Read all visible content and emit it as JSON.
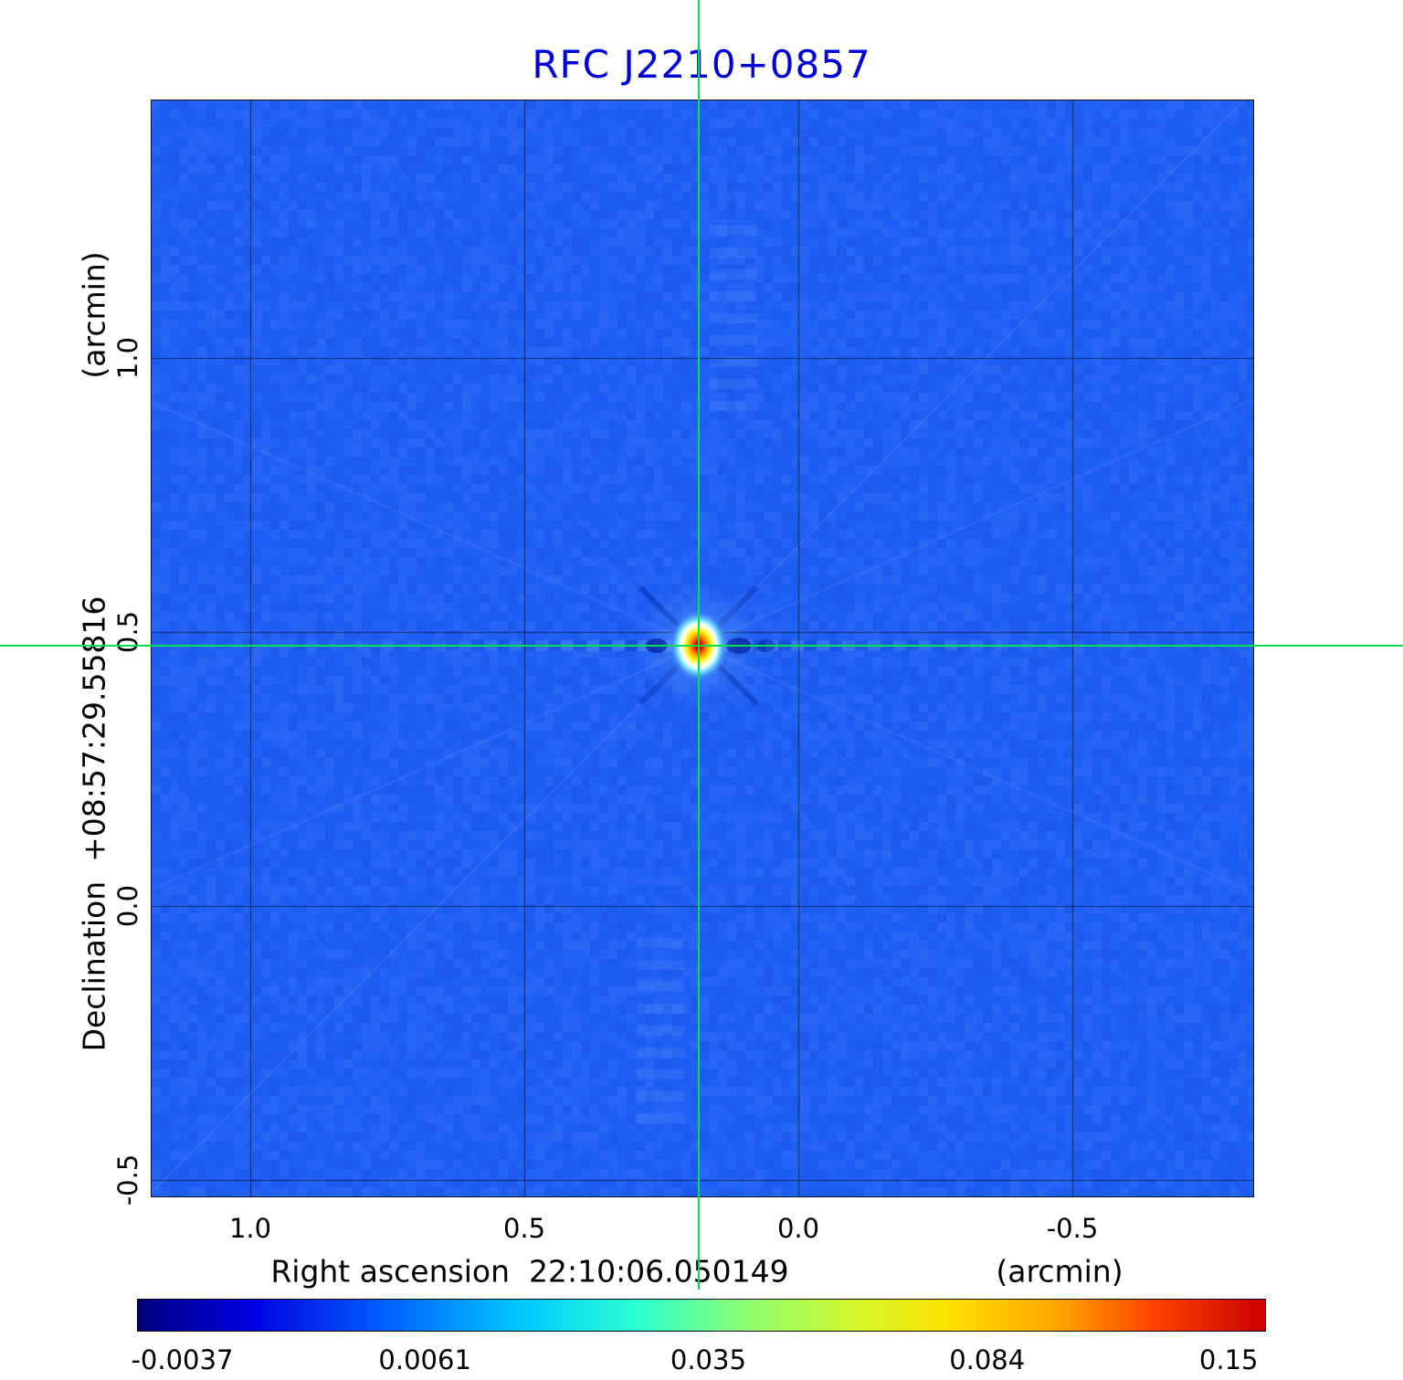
{
  "title": "RFC J2210+0857",
  "colors": {
    "title": "#0000dd",
    "crosshair": "#00e050",
    "axis_text": "#000000"
  },
  "axes": {
    "x_title_full": "Right ascension  22:10:06.050149",
    "x_unit": "(arcmin)",
    "y_title_full": "Declination  +08:57:29.55816",
    "y_unit": "(arcmin)",
    "x_ticks": [
      "1.0",
      "0.5",
      "0.0",
      "-0.5"
    ],
    "y_ticks": [
      "1.0",
      "0.5",
      "0.0",
      "-0.5"
    ]
  },
  "colorbar": {
    "ticks": [
      "-0.0037",
      "0.0061",
      "0.035",
      "0.084",
      "0.15"
    ],
    "tick_positions": [
      0.04,
      0.255,
      0.506,
      0.753,
      0.967
    ]
  },
  "chart_data": {
    "type": "heatmap",
    "title": "RFC J2210+0857",
    "xlabel": "Right ascension 22:10:06.050149 (arcmin)",
    "ylabel": "Declination +08:57:29.55816 (arcmin)",
    "x_range_arcmin": [
      1.18,
      -0.83
    ],
    "y_range_arcmin": [
      -0.53,
      1.47
    ],
    "x_ticks_arcmin": [
      1.0,
      0.5,
      0.0,
      -0.5
    ],
    "y_ticks_arcmin": [
      1.0,
      0.5,
      0.0,
      -0.5
    ],
    "grid": true,
    "source": {
      "name": "RFC J2210+0857",
      "ra": "22:10:06.050149",
      "dec": "+08:57:29.55816",
      "peak_offset_arcmin": {
        "x": 0.182,
        "y": 0.475
      },
      "peak_value": 0.15
    },
    "intensity_ticks": [
      -0.0037,
      0.0061,
      0.035,
      0.084,
      0.15
    ],
    "background_color": "#1e5ff5",
    "colormap": [
      {
        "pos": 0.0,
        "color": "#000080"
      },
      {
        "pos": 0.1,
        "color": "#0000e0"
      },
      {
        "pos": 0.22,
        "color": "#0060ff"
      },
      {
        "pos": 0.34,
        "color": "#00c8ff"
      },
      {
        "pos": 0.44,
        "color": "#2affd4"
      },
      {
        "pos": 0.54,
        "color": "#8cff6e"
      },
      {
        "pos": 0.64,
        "color": "#d8f62a"
      },
      {
        "pos": 0.72,
        "color": "#ffe100"
      },
      {
        "pos": 0.82,
        "color": "#ffa000"
      },
      {
        "pos": 0.9,
        "color": "#ff4400"
      },
      {
        "pos": 1.0,
        "color": "#cc0000"
      }
    ],
    "source_gradient": [
      "#7a0000",
      "#d40000",
      "#ff5500",
      "#ffaa00",
      "#ffee00",
      "#ffffaa",
      "#ffffff",
      "#7fe8ff",
      "#56a8ff"
    ]
  }
}
